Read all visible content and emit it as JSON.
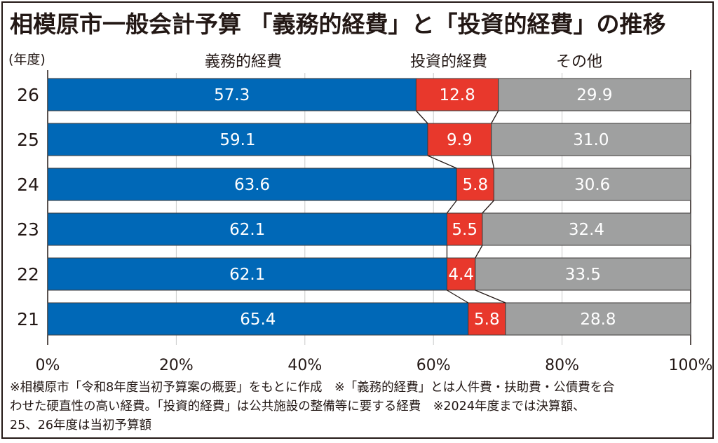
{
  "chart_data": {
    "type": "bar",
    "subtype": "stacked-horizontal-100",
    "title": "相模原市一般会計予算 「義務的経費」と「投資的経費」の推移",
    "ylabel": "(年度)",
    "xlabel": "",
    "categories": [
      "26",
      "25",
      "24",
      "23",
      "22",
      "21"
    ],
    "series": [
      {
        "name": "義務的経費",
        "color": "#0068b7",
        "values": [
          57.3,
          59.1,
          63.6,
          62.1,
          62.1,
          65.4
        ]
      },
      {
        "name": "投資的経費",
        "color": "#e8382c",
        "values": [
          12.8,
          9.9,
          5.8,
          5.5,
          4.4,
          5.8
        ]
      },
      {
        "name": "その他",
        "color": "#9fa0a0",
        "values": [
          29.9,
          31.0,
          30.6,
          32.4,
          33.5,
          28.8
        ]
      }
    ],
    "xlim": [
      0,
      100
    ],
    "xticks": [
      "0%",
      "20%",
      "40%",
      "60%",
      "80%",
      "100%"
    ],
    "grid": true,
    "legend": "top, above bars"
  },
  "notes": [
    "※相模原市「令和8年度当初予算案の概要」をもとに作成　※「義務的経費」とは人件費・扶助費・公債費を合",
    "わせた硬直性の高い経費。「投資的経費」は公共施設の整備等に要する経費　※2024年度までは決算額、",
    "25、26年度は当初予算額"
  ]
}
